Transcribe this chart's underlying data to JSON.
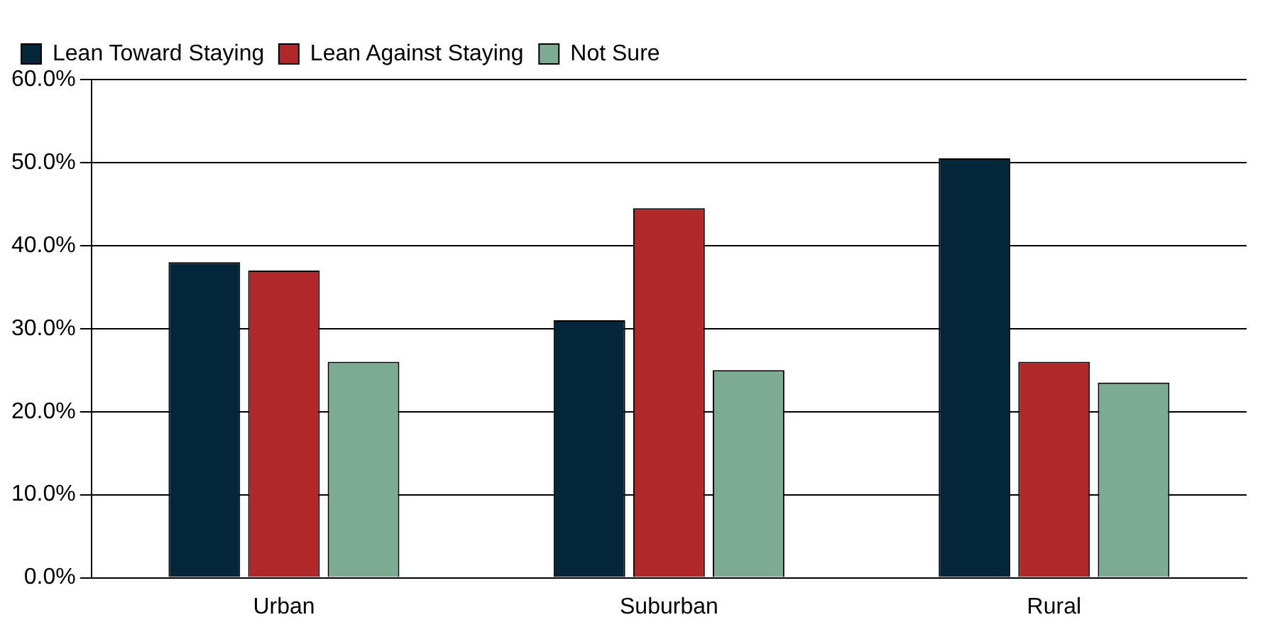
{
  "chart_data": {
    "type": "bar",
    "categories": [
      "Urban",
      "Suburban",
      "Rural"
    ],
    "series": [
      {
        "name": "Lean Toward Staying",
        "color": "#03263a",
        "values": [
          38,
          31,
          50.5
        ]
      },
      {
        "name": "Lean Against Staying",
        "color": "#b0282a",
        "values": [
          37,
          44.5,
          26
        ]
      },
      {
        "name": "Not Sure",
        "color": "#7daa92",
        "values": [
          26,
          25,
          23.5
        ]
      }
    ],
    "ylim": [
      0,
      60
    ],
    "yticks": [
      {
        "value": 0,
        "label": "0.0%"
      },
      {
        "value": 10,
        "label": "10.0%"
      },
      {
        "value": 20,
        "label": "20.0%"
      },
      {
        "value": 30,
        "label": "30.0%"
      },
      {
        "value": 40,
        "label": "40.0%"
      },
      {
        "value": 50,
        "label": "50.0%"
      },
      {
        "value": 60,
        "label": "60.0%"
      }
    ],
    "grid": "y",
    "legend": "top left"
  }
}
